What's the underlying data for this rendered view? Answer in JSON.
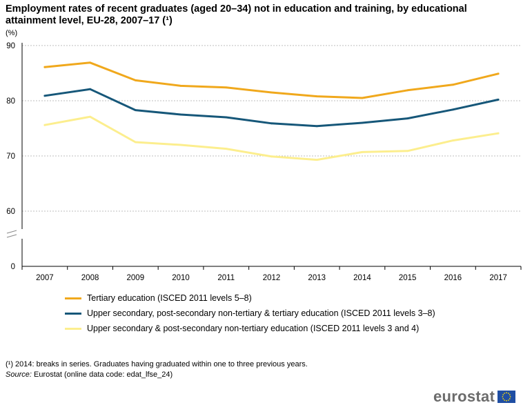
{
  "title": "Employment rates of recent graduates (aged 20–34) not in education and training, by educational attainment level, EU-28, 2007–17 (¹)",
  "unit": "(%)",
  "colors": {
    "tertiary": "#F0A81C",
    "upper_tertiary": "#165779",
    "upper": "#FCEE8E",
    "grid": "#bdbdbd",
    "axis": "#000000"
  },
  "chart_data": {
    "type": "line",
    "title": "Employment rates of recent graduates (aged 20–34) not in education and training, by educational attainment level, EU-28, 2007–17 (¹)",
    "ylabel": "(%)",
    "xlabel": "",
    "x": [
      "2007",
      "2008",
      "2009",
      "2010",
      "2011",
      "2012",
      "2013",
      "2014",
      "2015",
      "2016",
      "2017"
    ],
    "y_ticks": [
      "90",
      "80",
      "70",
      "60",
      "0"
    ],
    "ylim": [
      60,
      90
    ],
    "axis_break": true,
    "grid": true,
    "legend_position": "bottom-left",
    "series": [
      {
        "name": "Tertiary education (ISCED 2011  levels 5–8)",
        "color": "#F0A81C",
        "values": [
          86.1,
          86.9,
          83.7,
          82.7,
          82.4,
          81.5,
          80.8,
          80.5,
          81.9,
          82.9,
          84.9
        ]
      },
      {
        "name": "Upper secondary, post-secondary  non-tertiary & tertiary education (ISCED 2011 levels 3–8)",
        "color": "#165779",
        "values": [
          80.9,
          82.1,
          78.3,
          77.5,
          77.0,
          75.9,
          75.4,
          76.0,
          76.8,
          78.4,
          80.2
        ]
      },
      {
        "name": "Upper secondary & post-secondary non-tertiary education (ISCED 2011 levels 3 and 4)",
        "color": "#FCEE8E",
        "values": [
          75.6,
          77.1,
          72.5,
          72.0,
          71.3,
          69.9,
          69.3,
          70.7,
          70.9,
          72.8,
          74.1
        ]
      }
    ]
  },
  "footnote": {
    "note": "(¹) 2014: breaks in series. Graduates having graduated within one to three previous years.",
    "source_label": "Source:",
    "source_text": " Eurostat (online data code: edat_lfse_24)"
  },
  "brand": "eurostat"
}
